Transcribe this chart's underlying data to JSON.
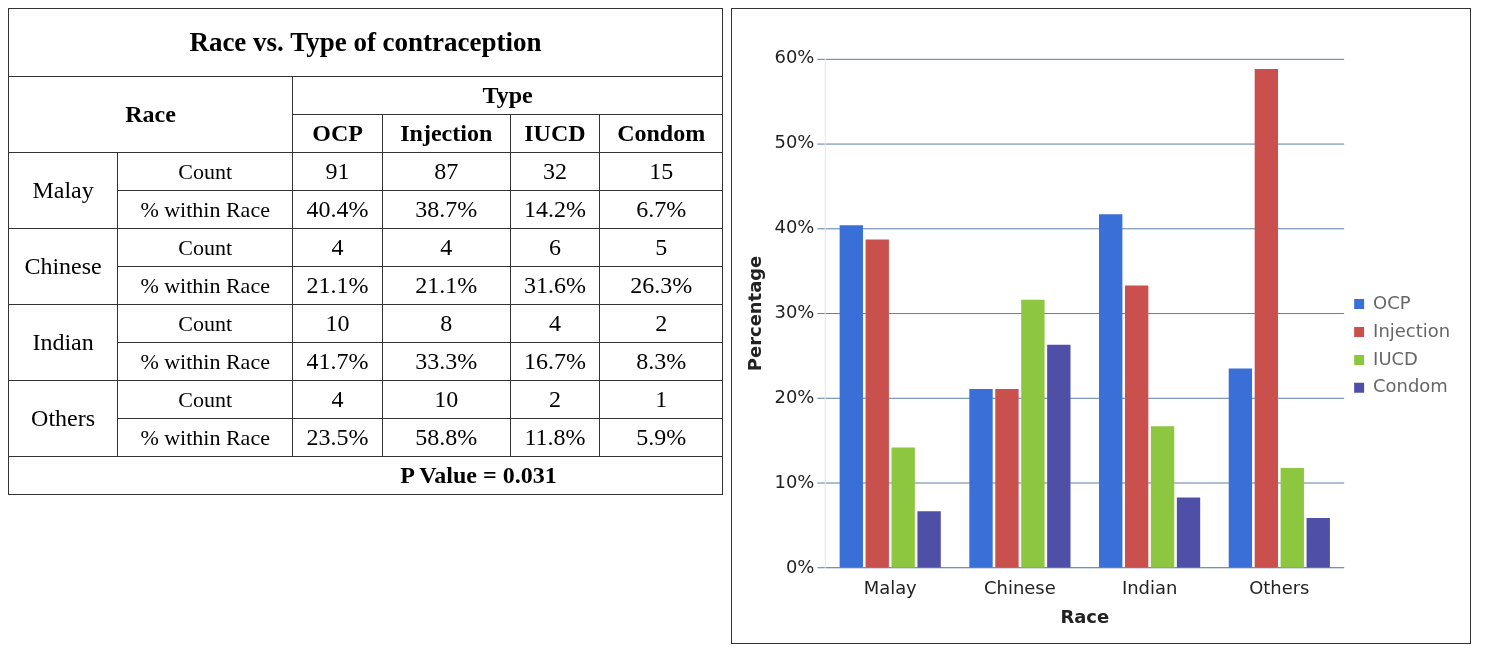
{
  "chart_data": [
    {
      "type": "other",
      "title": "Race vs. Type of contraception",
      "ylabel": "Race",
      "xlabel": "Type",
      "categories": [
        "OCP",
        "Injection",
        "IUCD",
        "Condom"
      ],
      "y_categories": [
        "Malay",
        null,
        "Chinese",
        null,
        "Indian",
        null,
        "Others",
        null
      ],
      "y2_categories": [
        "Count",
        "% within Race",
        "Count",
        "% within Race",
        "Count",
        "% within Race",
        "Count",
        "% within Race"
      ],
      "cell_labels": [
        [
          "91",
          "87",
          "32",
          "15"
        ],
        [
          "40.4%",
          "38.7%",
          "14.2%",
          "6.7%"
        ],
        [
          "4",
          "4",
          "6",
          "5"
        ],
        [
          "21.1%",
          "21.1%",
          "31.6%",
          "26.3%"
        ],
        [
          "10",
          "8",
          "4",
          "2"
        ],
        [
          "41.7%",
          "33.3%",
          "16.7%",
          "8.3%"
        ],
        [
          "4",
          "10",
          "2",
          "1"
        ],
        [
          "23.5%",
          "58.8%",
          "11.8%",
          "5.9%"
        ]
      ],
      "annotations": [
        "P Value = 0.031"
      ]
    },
    {
      "type": "bar",
      "xlabel": "Race",
      "ylabel": "Percentage",
      "categories": [
        "Malay",
        "Chinese",
        "Indian",
        "Others"
      ],
      "series": [
        {
          "name": "OCP",
          "color": "#3a6fd8",
          "values": [
            40.4,
            21.1,
            41.7,
            23.5
          ]
        },
        {
          "name": "Injection",
          "color": "#c9504c",
          "values": [
            38.7,
            21.1,
            33.3,
            58.8
          ]
        },
        {
          "name": "IUCD",
          "color": "#8dc63f",
          "values": [
            14.2,
            31.6,
            16.7,
            11.8
          ]
        },
        {
          "name": "Condom",
          "color": "#4f4fa8",
          "values": [
            6.7,
            26.3,
            8.3,
            5.9
          ]
        }
      ],
      "ylim": [
        0,
        60
      ],
      "yticks": [
        {
          "value": 0,
          "label": "0%"
        },
        {
          "value": 10,
          "label": "10%"
        },
        {
          "value": 20,
          "label": "20%"
        },
        {
          "value": 30,
          "label": "30%"
        },
        {
          "value": 40,
          "label": "40%"
        },
        {
          "value": 50,
          "label": "50%"
        },
        {
          "value": 60,
          "label": "60%"
        }
      ],
      "grid": "y",
      "legend": "right"
    }
  ]
}
